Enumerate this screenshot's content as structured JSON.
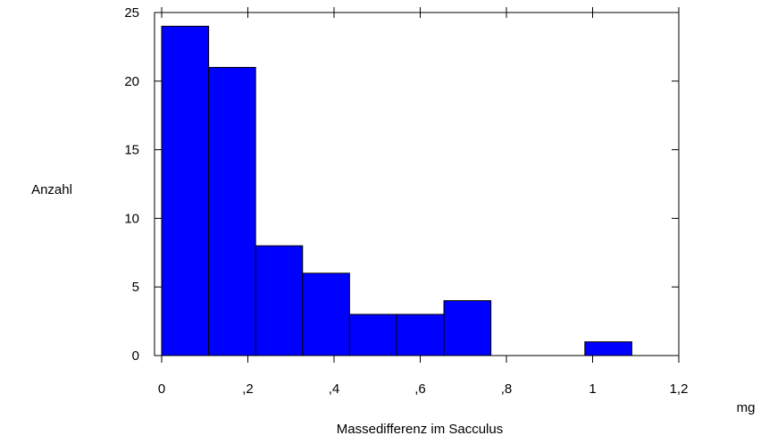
{
  "chart_data": {
    "type": "histogram",
    "xlabel": "Massedifferenz im Sacculus",
    "ylabel": "Anzahl",
    "xunit": "mg",
    "bins": [
      0,
      0.109,
      0.218,
      0.327,
      0.436,
      0.545,
      0.655,
      0.764,
      0.873,
      0.982,
      1.091,
      1.2
    ],
    "values": [
      24,
      21,
      8,
      6,
      3,
      3,
      4,
      0,
      0,
      1,
      0
    ],
    "color": "#0000ff",
    "xlim": [
      0,
      1.2
    ],
    "ylim": [
      0,
      25
    ],
    "xticks": [
      0,
      {
        "value": 0.2,
        "label": ",2"
      },
      {
        "value": 0.4,
        "label": ",4"
      },
      {
        "value": 0.6,
        "label": ",6"
      },
      {
        "value": 0.8,
        "label": ",8"
      },
      1,
      {
        "value": 1.2,
        "label": "1,2"
      }
    ],
    "yticks": [
      0,
      5,
      10,
      15,
      20,
      25
    ]
  }
}
